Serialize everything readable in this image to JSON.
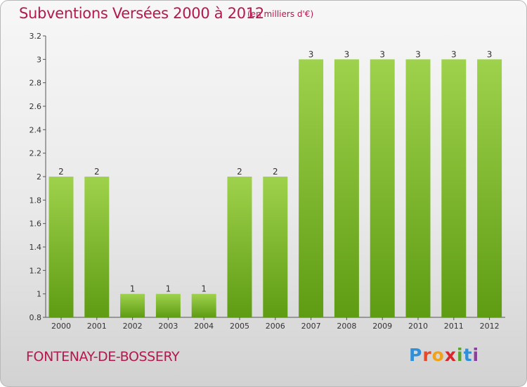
{
  "title": "Subventions Versées 2000 à 2012",
  "unit": "(en milliers d'€)",
  "commune": "FONTENAY-DE-BOSSERY",
  "logo": {
    "text": "Proxiti",
    "letters": [
      {
        "ch": "P",
        "color": "#2f8fd8"
      },
      {
        "ch": "r",
        "color": "#e8492a"
      },
      {
        "ch": "o",
        "color": "#f0a21b"
      },
      {
        "ch": "x",
        "color": "#d9262b"
      },
      {
        "ch": "i",
        "color": "#57a62b"
      },
      {
        "ch": "t",
        "color": "#2f8fd8"
      },
      {
        "ch": "i",
        "color": "#8a3f9c"
      }
    ]
  },
  "colors": {
    "title": "#b5174f",
    "bar_top": "#9fd24c",
    "bar_bottom": "#5e9c13",
    "axis": "#555555"
  },
  "chart_data": {
    "type": "bar",
    "categories": [
      "2000",
      "2001",
      "2002",
      "2003",
      "2004",
      "2005",
      "2006",
      "2007",
      "2008",
      "2009",
      "2010",
      "2011",
      "2012"
    ],
    "values": [
      2,
      2,
      1,
      1,
      1,
      2,
      2,
      3,
      3,
      3,
      3,
      3,
      3
    ],
    "ylim": [
      0.8,
      3.2
    ],
    "yticks": [
      "0.8",
      "1",
      "1.2",
      "1.4",
      "1.6",
      "1.8",
      "2",
      "2.2",
      "2.4",
      "2.6",
      "2.8",
      "3",
      "3.2"
    ],
    "grid": false,
    "xlabel": "",
    "ylabel": ""
  }
}
